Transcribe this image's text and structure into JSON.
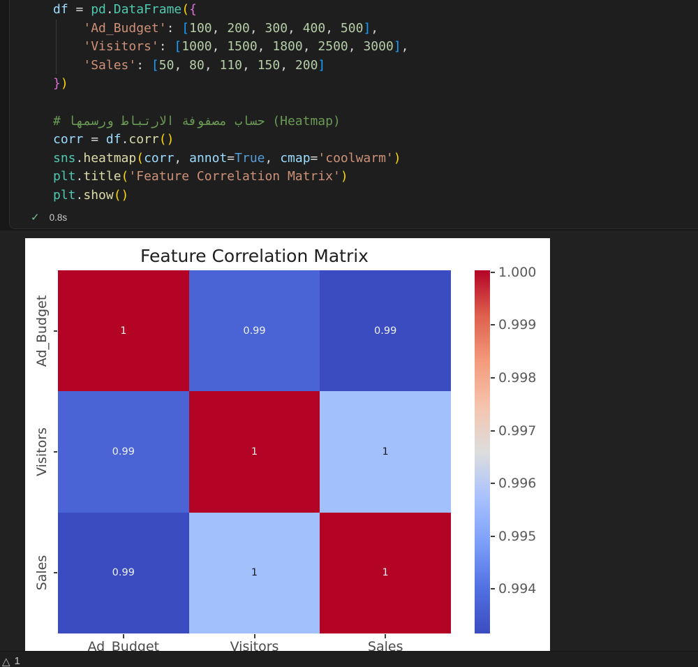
{
  "token_colors": {
    "var": "#9CDCFE",
    "op": "#D4D4D4",
    "mod": "#4EC9B0",
    "cls": "#4EC9B0",
    "fn": "#DCDCAA",
    "b1": "#FFD700",
    "b2": "#DA70D6",
    "b3": "#179FFF",
    "str": "#CE9178",
    "num": "#B5CEA8",
    "kw": "#569CD6",
    "com": "#6A9955"
  },
  "editor": {
    "background": "#1E1E1E",
    "lines": [
      [
        {
          "t": "df",
          "c": "var"
        },
        {
          "t": " = ",
          "c": "op"
        },
        {
          "t": "pd",
          "c": "mod"
        },
        {
          "t": ".",
          "c": "op"
        },
        {
          "t": "DataFrame",
          "c": "cls"
        },
        {
          "t": "(",
          "c": "b1"
        },
        {
          "t": "{",
          "c": "b2"
        }
      ],
      [
        {
          "t": "    ",
          "c": "op"
        },
        {
          "t": "'Ad_Budget'",
          "c": "str"
        },
        {
          "t": ": ",
          "c": "op"
        },
        {
          "t": "[",
          "c": "b3"
        },
        {
          "t": "100",
          "c": "num"
        },
        {
          "t": ", ",
          "c": "op"
        },
        {
          "t": "200",
          "c": "num"
        },
        {
          "t": ", ",
          "c": "op"
        },
        {
          "t": "300",
          "c": "num"
        },
        {
          "t": ", ",
          "c": "op"
        },
        {
          "t": "400",
          "c": "num"
        },
        {
          "t": ", ",
          "c": "op"
        },
        {
          "t": "500",
          "c": "num"
        },
        {
          "t": "]",
          "c": "b3"
        },
        {
          "t": ",",
          "c": "op"
        }
      ],
      [
        {
          "t": "    ",
          "c": "op"
        },
        {
          "t": "'Visitors'",
          "c": "str"
        },
        {
          "t": ": ",
          "c": "op"
        },
        {
          "t": "[",
          "c": "b3"
        },
        {
          "t": "1000",
          "c": "num"
        },
        {
          "t": ", ",
          "c": "op"
        },
        {
          "t": "1500",
          "c": "num"
        },
        {
          "t": ", ",
          "c": "op"
        },
        {
          "t": "1800",
          "c": "num"
        },
        {
          "t": ", ",
          "c": "op"
        },
        {
          "t": "2500",
          "c": "num"
        },
        {
          "t": ", ",
          "c": "op"
        },
        {
          "t": "3000",
          "c": "num"
        },
        {
          "t": "]",
          "c": "b3"
        },
        {
          "t": ",",
          "c": "op"
        }
      ],
      [
        {
          "t": "    ",
          "c": "op"
        },
        {
          "t": "'Sales'",
          "c": "str"
        },
        {
          "t": ": ",
          "c": "op"
        },
        {
          "t": "[",
          "c": "b3"
        },
        {
          "t": "50",
          "c": "num"
        },
        {
          "t": ", ",
          "c": "op"
        },
        {
          "t": "80",
          "c": "num"
        },
        {
          "t": ", ",
          "c": "op"
        },
        {
          "t": "110",
          "c": "num"
        },
        {
          "t": ", ",
          "c": "op"
        },
        {
          "t": "150",
          "c": "num"
        },
        {
          "t": ", ",
          "c": "op"
        },
        {
          "t": "200",
          "c": "num"
        },
        {
          "t": "]",
          "c": "b3"
        }
      ],
      [
        {
          "t": "}",
          "c": "b2"
        },
        {
          "t": ")",
          "c": "b1"
        }
      ],
      [],
      [
        {
          "t": "# حساب مصفوفة الارتباط ورسمها (Heatmap)",
          "c": "com"
        }
      ],
      [
        {
          "t": "corr",
          "c": "var"
        },
        {
          "t": " = ",
          "c": "op"
        },
        {
          "t": "df",
          "c": "var"
        },
        {
          "t": ".",
          "c": "op"
        },
        {
          "t": "corr",
          "c": "fn"
        },
        {
          "t": "()",
          "c": "b1"
        }
      ],
      [
        {
          "t": "sns",
          "c": "mod"
        },
        {
          "t": ".",
          "c": "op"
        },
        {
          "t": "heatmap",
          "c": "fn"
        },
        {
          "t": "(",
          "c": "b1"
        },
        {
          "t": "corr",
          "c": "var"
        },
        {
          "t": ", ",
          "c": "op"
        },
        {
          "t": "annot",
          "c": "var"
        },
        {
          "t": "=",
          "c": "op"
        },
        {
          "t": "True",
          "c": "kw"
        },
        {
          "t": ", ",
          "c": "op"
        },
        {
          "t": "cmap",
          "c": "var"
        },
        {
          "t": "=",
          "c": "op"
        },
        {
          "t": "'coolwarm'",
          "c": "str"
        },
        {
          "t": ")",
          "c": "b1"
        }
      ],
      [
        {
          "t": "plt",
          "c": "mod"
        },
        {
          "t": ".",
          "c": "op"
        },
        {
          "t": "title",
          "c": "fn"
        },
        {
          "t": "(",
          "c": "b1"
        },
        {
          "t": "'Feature Correlation Matrix'",
          "c": "str"
        },
        {
          "t": ")",
          "c": "b1"
        }
      ],
      [
        {
          "t": "plt",
          "c": "mod"
        },
        {
          "t": ".",
          "c": "op"
        },
        {
          "t": "show",
          "c": "fn"
        },
        {
          "t": "()",
          "c": "b1"
        }
      ]
    ],
    "execution": {
      "check_icon": "✓",
      "duration": "0.8s"
    }
  },
  "chart_data": {
    "type": "heatmap",
    "title": "Feature Correlation Matrix",
    "colormap": "coolwarm",
    "x_categories": [
      "Ad_Budget",
      "Visitors",
      "Sales"
    ],
    "y_categories": [
      "Ad_Budget",
      "Visitors",
      "Sales"
    ],
    "matrix": [
      [
        1.0,
        0.99,
        0.99
      ],
      [
        0.99,
        1.0,
        1.0
      ],
      [
        0.99,
        1.0,
        1.0
      ]
    ],
    "annotations": [
      [
        "1",
        "0.99",
        "0.99"
      ],
      [
        "0.99",
        "1",
        "1"
      ],
      [
        "0.99",
        "1",
        "1"
      ]
    ],
    "cell_colors": [
      [
        "#B40426",
        "#4B64D5",
        "#3B4CC0"
      ],
      [
        "#4B64D5",
        "#B40426",
        "#A2C0FB"
      ],
      [
        "#3B4CC0",
        "#A2C0FB",
        "#B40426"
      ]
    ],
    "annotation_colors": [
      [
        "#EFEFEF",
        "#EFF2FC",
        "#EFF2FC"
      ],
      [
        "#EFF2FC",
        "#EFEFEF",
        "#181824"
      ],
      [
        "#EFF2FC",
        "#181824",
        "#EFEFEF"
      ]
    ],
    "colorbar": {
      "position": "right",
      "ticks": [
        "1.000",
        "0.999",
        "0.998",
        "0.997",
        "0.996",
        "0.995",
        "0.994"
      ],
      "gradient_top_to_bottom": [
        "#B40426",
        "#DE604D",
        "#F49A7B",
        "#F5C4AD",
        "#DDDDDD",
        "#A9C2FE",
        "#7C9FF9",
        "#5171E2",
        "#3B4CC0"
      ]
    },
    "grid": false,
    "background": "#FFFFFF"
  },
  "status_overlay": {
    "warning_icon": "△",
    "warning_count": "1"
  }
}
